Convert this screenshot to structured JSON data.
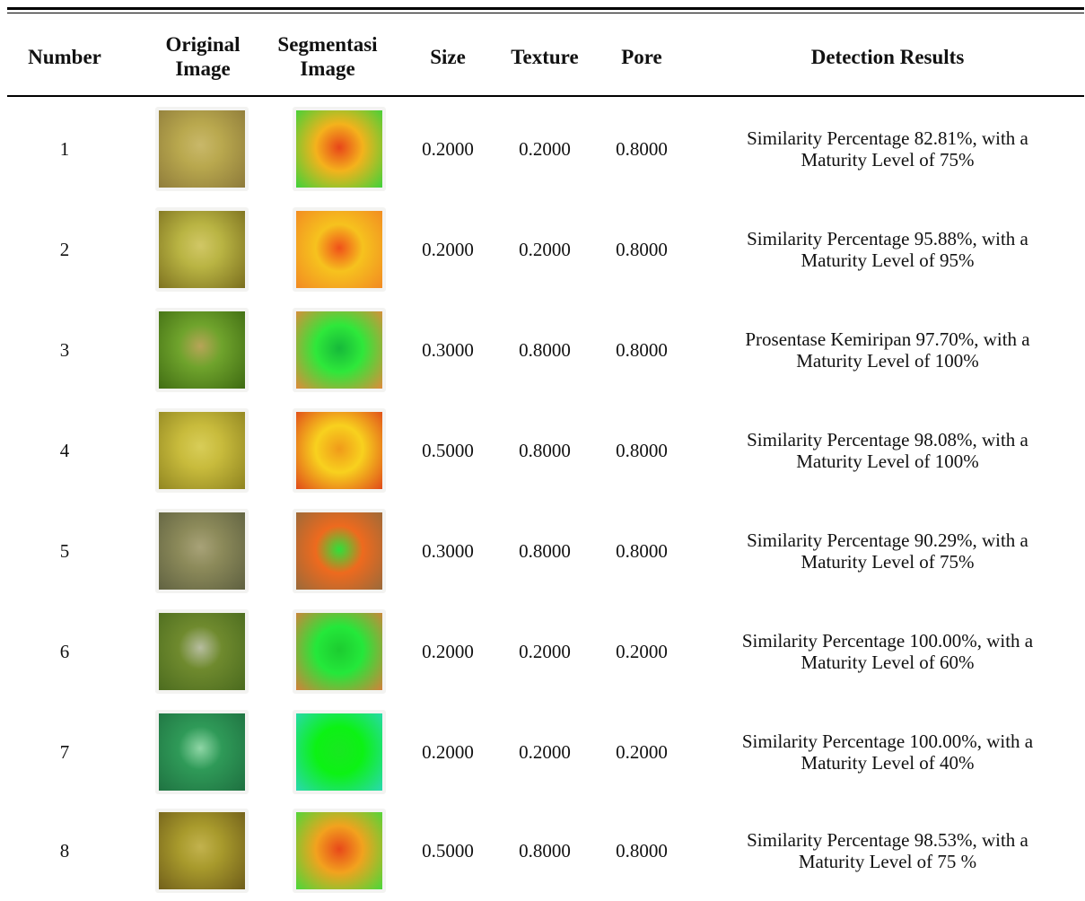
{
  "table": {
    "headers": {
      "number": "Number",
      "original": [
        "Original",
        "Image"
      ],
      "segmentation": [
        "Segmentasi",
        "Image"
      ],
      "size": "Size",
      "texture": "Texture",
      "pore": "Pore",
      "results": "Detection Results"
    },
    "rows": [
      {
        "number": "1",
        "size": "0.2000",
        "texture": "0.2000",
        "pore": "0.8000",
        "result_line1": "Similarity Percentage 82.81%, with a",
        "result_line2": "Maturity Level of 75%",
        "orig_colors": [
          "#b9a84e",
          "#8d7a3a",
          "#c9b86a"
        ],
        "seg_colors": [
          "#f4b21c",
          "#e8451a",
          "#3fd23a"
        ]
      },
      {
        "number": "2",
        "size": "0.2000",
        "texture": "0.2000",
        "pore": "0.8000",
        "result_line1": "Similarity Percentage 95.88%, with a",
        "result_line2": "Maturity Level of 95%",
        "orig_colors": [
          "#b9b443",
          "#7a6e1e",
          "#d1c766"
        ],
        "seg_colors": [
          "#f6c21e",
          "#f0501a",
          "#f28a22"
        ]
      },
      {
        "number": "3",
        "size": "0.3000",
        "texture": "0.8000",
        "pore": "0.8000",
        "result_line1": "Prosentase Kemiripan 97.70%, with a",
        "result_line2": "Maturity Level of 100%",
        "orig_colors": [
          "#6fa32c",
          "#3e6a12",
          "#b8a458"
        ],
        "seg_colors": [
          "#2ee83a",
          "#16b93a",
          "#e08a3a"
        ]
      },
      {
        "number": "4",
        "size": "0.5000",
        "texture": "0.8000",
        "pore": "0.8000",
        "result_line1": "Similarity Percentage 98.08%, with a",
        "result_line2": "Maturity Level of 100%",
        "orig_colors": [
          "#c8bb3c",
          "#8e8320",
          "#d8cd58"
        ],
        "seg_colors": [
          "#f8d11e",
          "#f09a1a",
          "#e04a1a"
        ]
      },
      {
        "number": "5",
        "size": "0.3000",
        "texture": "0.8000",
        "pore": "0.8000",
        "result_line1": "Similarity Percentage 90.29%, with a",
        "result_line2": "Maturity Level of 75%",
        "orig_colors": [
          "#8c8a5a",
          "#5e6040",
          "#a8a278"
        ],
        "seg_colors": [
          "#ee6a1e",
          "#2ee13a",
          "#9a6a3a"
        ]
      },
      {
        "number": "6",
        "size": "0.2000",
        "texture": "0.2000",
        "pore": "0.2000",
        "result_line1": "Similarity Percentage 100.00%, with a",
        "result_line2": "Maturity Level of 60%",
        "orig_colors": [
          "#6f8a2e",
          "#4a6a1e",
          "#b7bda0"
        ],
        "seg_colors": [
          "#24e83a",
          "#1ccc30",
          "#d4803a"
        ]
      },
      {
        "number": "7",
        "size": "0.2000",
        "texture": "0.2000",
        "pore": "0.2000",
        "result_line1": "Similarity Percentage 100.00%, with a",
        "result_line2": "Maturity Level of 40%",
        "orig_colors": [
          "#2f9a58",
          "#1e7040",
          "#8fd6a6"
        ],
        "seg_colors": [
          "#0cf214",
          "#18e820",
          "#2ad8b0"
        ]
      },
      {
        "number": "8",
        "size": "0.5000",
        "texture": "0.8000",
        "pore": "0.8000",
        "result_line1": "Similarity Percentage 98.53%, with a",
        "result_line2": "Maturity Level of 75 %",
        "orig_colors": [
          "#a89a2c",
          "#6e5c1a",
          "#c2b24e"
        ],
        "seg_colors": [
          "#f2a21e",
          "#e8481a",
          "#4ad83a"
        ]
      }
    ]
  }
}
